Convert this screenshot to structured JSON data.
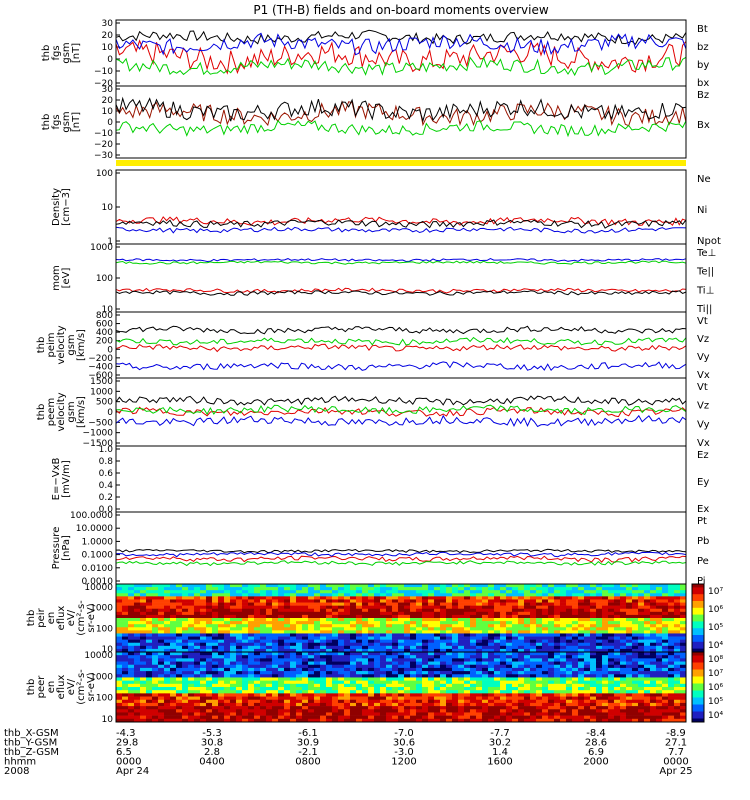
{
  "title": "P1 (TH-B) fields and on-board moments overview",
  "colors": {
    "black": "#000000",
    "red": "#e00000",
    "green": "#00d000",
    "blue": "#0000e0",
    "brown": "#9a1500",
    "yellow": "#ffee00"
  },
  "chart_data": [
    {
      "type": "line",
      "ylabel": [
        "thb",
        "fgs",
        "gsm",
        "[nT]"
      ],
      "yticks": [
        "30",
        "20",
        "10",
        "0",
        "−10",
        "−20"
      ],
      "ylim": [
        -20,
        30
      ],
      "series": [
        {
          "name": "Bt",
          "color": "#000000",
          "level": 17,
          "noise": 4
        },
        {
          "name": "bz",
          "color": "#e00000",
          "level": 2,
          "noise": 9
        },
        {
          "name": "by",
          "color": "#00d000",
          "level": -5,
          "noise": 5
        },
        {
          "name": "bx",
          "color": "#0000e0",
          "level": 12,
          "noise": 6
        }
      ]
    },
    {
      "type": "line",
      "ylabel": [
        "thb",
        "fgs",
        "gsm",
        "[nT]"
      ],
      "yticks": [
        "30",
        "20",
        "10",
        "0",
        "−10",
        "−20",
        "−30"
      ],
      "ylim": [
        -35,
        30
      ],
      "series": [
        {
          "name": "Bz",
          "color": "#9a1500",
          "level": 5,
          "noise": 8
        },
        {
          "name": "Bx",
          "color": "#000000",
          "level": 8,
          "noise": 8
        },
        {
          "name": "",
          "color": "#00d000",
          "level": -8,
          "noise": 5
        }
      ]
    },
    {
      "type": "line",
      "ylabel": [
        "Density",
        "[cm−3]"
      ],
      "yticks": [
        "100",
        "10",
        "1"
      ],
      "ylim": [
        1,
        300
      ],
      "scale": "log",
      "series": [
        {
          "name": "Ne",
          "color": "#e00000",
          "level": 6,
          "noise": 1.5
        },
        {
          "name": "Ni",
          "color": "#000000",
          "level": 5,
          "noise": 1.2
        },
        {
          "name": "Npot",
          "color": "#0000e0",
          "level": 3,
          "noise": 0.5
        }
      ]
    },
    {
      "type": "line",
      "ylabel": [
        "mom",
        "[eV]"
      ],
      "yticks": [
        "1000",
        "100",
        "10"
      ],
      "ylim": [
        3,
        10000
      ],
      "scale": "log",
      "series": [
        {
          "name": "Te⊥",
          "color": "#e00000",
          "level": 40,
          "noise": 8
        },
        {
          "name": "Te||",
          "color": "#000000",
          "level": 30,
          "noise": 6
        },
        {
          "name": "Ti⊥",
          "color": "#0000e0",
          "level": 1500,
          "noise": 200
        },
        {
          "name": "Ti||",
          "color": "#00d000",
          "level": 1100,
          "noise": 150
        }
      ]
    },
    {
      "type": "line",
      "ylabel": [
        "thb",
        "peim",
        "velocity",
        "gsm",
        "[km/s]"
      ],
      "yticks": [
        "800",
        "600",
        "400",
        "200",
        "0",
        "−200",
        "−400",
        "−600"
      ],
      "ylim": [
        -600,
        800
      ],
      "series": [
        {
          "name": "Vt",
          "color": "#000000",
          "level": 420,
          "noise": 60
        },
        {
          "name": "Vz",
          "color": "#e00000",
          "level": 40,
          "noise": 60
        },
        {
          "name": "Vy",
          "color": "#00d000",
          "level": 180,
          "noise": 60
        },
        {
          "name": "Vx",
          "color": "#0000e0",
          "level": -350,
          "noise": 70
        }
      ]
    },
    {
      "type": "line",
      "ylabel": [
        "thb",
        "peem",
        "velocity",
        "gsm",
        "[km/s]"
      ],
      "yticks": [
        "1500",
        "1000",
        "500",
        "0",
        "−500",
        "−1000",
        "−1500"
      ],
      "ylim": [
        -1500,
        1500
      ],
      "series": [
        {
          "name": "Vt",
          "color": "#000000",
          "level": 500,
          "noise": 150
        },
        {
          "name": "Vz",
          "color": "#e00000",
          "level": 0,
          "noise": 150
        },
        {
          "name": "Vy",
          "color": "#00d000",
          "level": 100,
          "noise": 150
        },
        {
          "name": "Vx",
          "color": "#0000e0",
          "level": -400,
          "noise": 180
        }
      ]
    },
    {
      "type": "line",
      "ylabel": [
        "E=−VxB",
        "[mV/m]"
      ],
      "yticks": [
        "1.0",
        "0.8",
        "0.6",
        "0.4",
        "0.2",
        "0.0"
      ],
      "ylim": [
        0,
        1
      ],
      "series": [
        {
          "name": "Ez",
          "color": "#e00000"
        },
        {
          "name": "Ey",
          "color": "#00d000"
        },
        {
          "name": "Ex",
          "color": "#0000e0"
        }
      ]
    },
    {
      "type": "line",
      "ylabel": [
        "Pressure",
        "[nPa]"
      ],
      "yticks": [
        "100.0000",
        "10.0000",
        "1.0000",
        "0.1000",
        "0.0100",
        "0.0010"
      ],
      "ylim": [
        0.001,
        100
      ],
      "scale": "log",
      "series": [
        {
          "name": "Pt",
          "color": "#000000",
          "level": 0.2,
          "noise": 0.04
        },
        {
          "name": "Pb",
          "color": "#e00000",
          "level": 0.06,
          "noise": 0.02
        },
        {
          "name": "Pe",
          "color": "#00d000",
          "level": 0.03,
          "noise": 0.008
        },
        {
          "name": "Pi",
          "color": "#0000e0",
          "level": 0.12,
          "noise": 0.03
        }
      ]
    },
    {
      "type": "heatmap",
      "ylabel": [
        "thb",
        "peir",
        "en",
        "eflux",
        "eV/",
        "(cm²-s-",
        "sr-eV)"
      ],
      "yticks": [
        "10000",
        "1000",
        "100",
        "10"
      ],
      "colorbar": [
        "10⁷",
        "10⁶",
        "10⁵",
        "10⁴"
      ]
    },
    {
      "type": "heatmap",
      "ylabel": [
        "thb",
        "peer",
        "en",
        "eflux",
        "eV/",
        "(cm²-s-",
        "sr-eV)"
      ],
      "yticks": [
        "10000",
        "1000",
        "100",
        "10"
      ],
      "colorbar": [
        "10⁸",
        "10⁷",
        "10⁶",
        "10⁵",
        "10⁴"
      ]
    }
  ],
  "footer": {
    "rows": [
      {
        "label": "thb_X-GSM",
        "values": [
          "-4.3",
          "-5.3",
          "-6.1",
          "-7.0",
          "-7.7",
          "-8.4",
          "-8.9"
        ]
      },
      {
        "label": "thb_Y-GSM",
        "values": [
          "29.8",
          "30.8",
          "30.9",
          "30.6",
          "30.2",
          "28.6",
          "27.1"
        ]
      },
      {
        "label": "thb_Z-GSM",
        "values": [
          "6.5",
          "2.8",
          "-2.1",
          "-3.0",
          "1.4",
          "6.9",
          "7.7"
        ]
      },
      {
        "label": "hhmm",
        "values": [
          "0000",
          "0400",
          "0800",
          "1200",
          "1600",
          "2000",
          "0000"
        ]
      },
      {
        "label": "2008",
        "values": [
          "Apr 24",
          "",
          "",
          "",
          "",
          "",
          "Apr 25"
        ]
      }
    ]
  }
}
